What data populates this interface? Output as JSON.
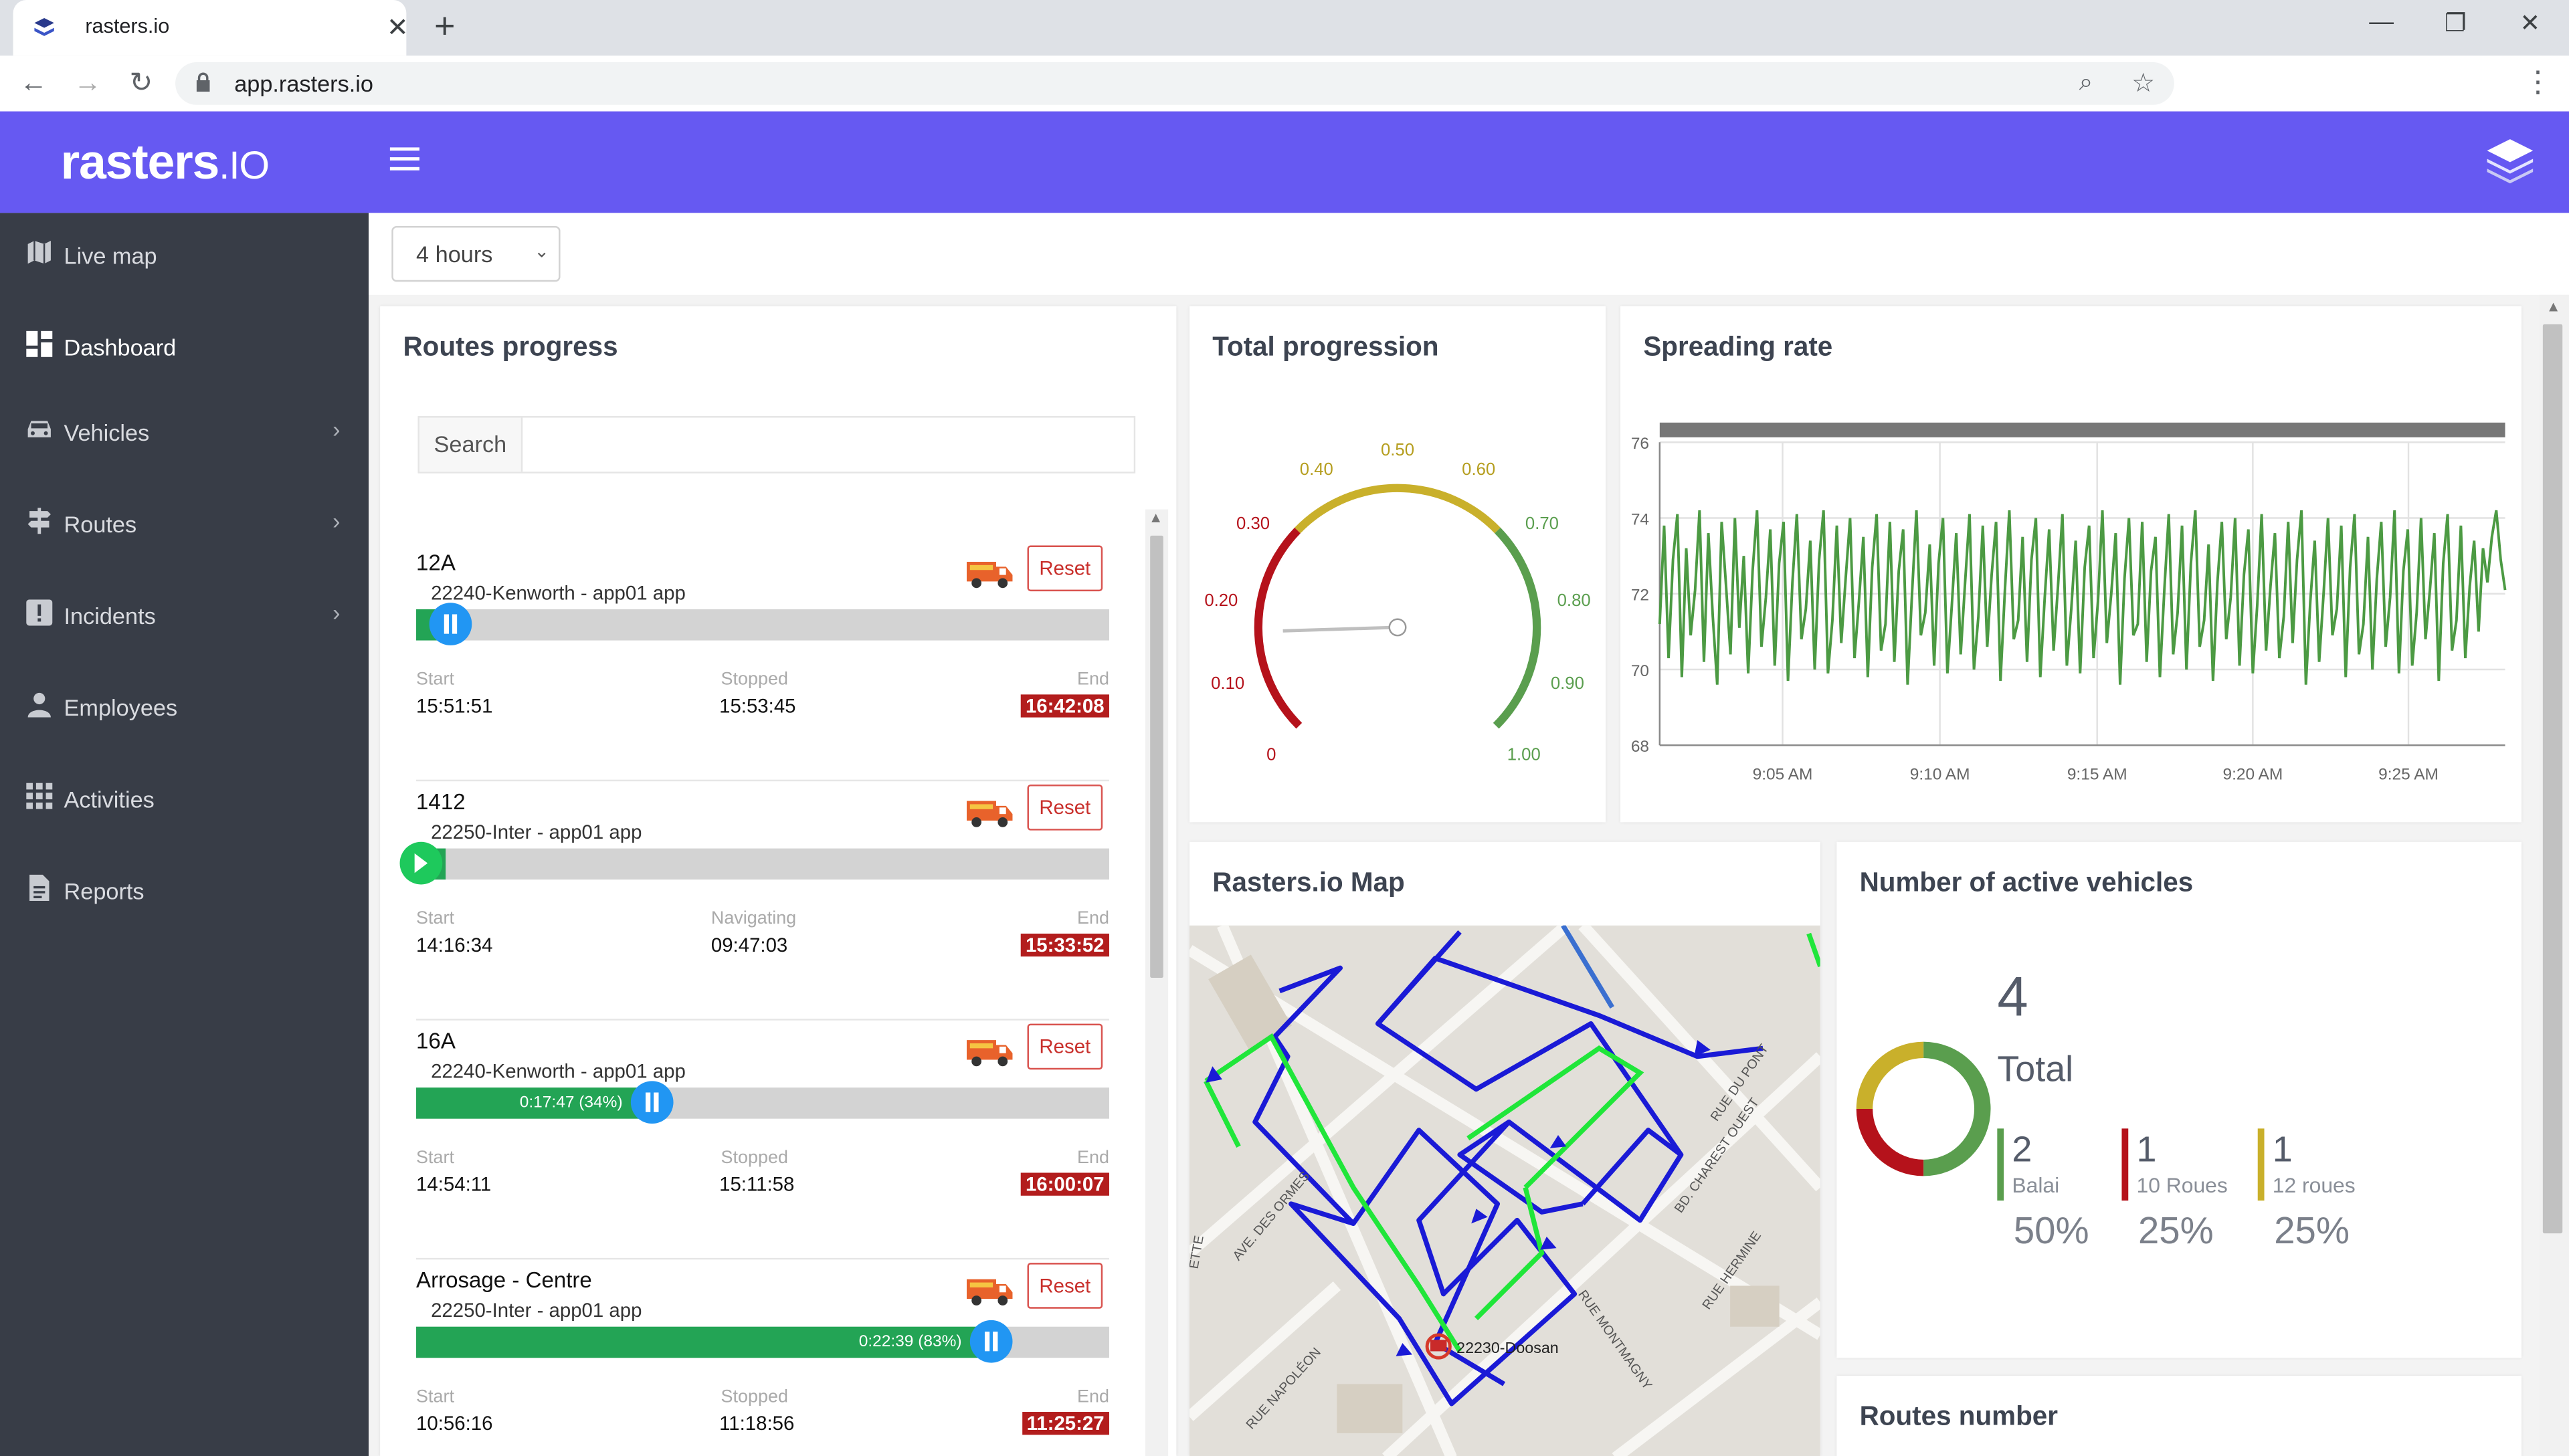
{
  "browser": {
    "tab_title": "rasters.io",
    "url": "app.rasters.io"
  },
  "app": {
    "logo_main": "rasters",
    "logo_suffix": ".IO"
  },
  "sidebar": {
    "items": [
      {
        "label": "Live map",
        "icon": "map-icon"
      },
      {
        "label": "Dashboard",
        "icon": "dashboard-icon"
      },
      {
        "label": "Vehicles",
        "icon": "car-icon"
      },
      {
        "label": "Routes",
        "icon": "signpost-icon"
      },
      {
        "label": "Incidents",
        "icon": "alert-icon"
      },
      {
        "label": "Employees",
        "icon": "person-icon"
      },
      {
        "label": "Activities",
        "icon": "grid-icon"
      },
      {
        "label": "Reports",
        "icon": "document-icon"
      }
    ]
  },
  "toolbar": {
    "time_range": "4 hours"
  },
  "routes_progress": {
    "title": "Routes progress",
    "search_label": "Search",
    "routes": [
      {
        "name": "12A",
        "sub": "22240-Kenworth - app01 app",
        "reset": "Reset",
        "progress_label": "",
        "progress": 0.05,
        "state": "paused",
        "start_label": "Start",
        "start": "15:51:51",
        "mid_label": "Stopped",
        "mid": "15:53:45",
        "end_label": "End",
        "end": "16:42:08"
      },
      {
        "name": "1412",
        "sub": "22250-Inter - app01 app",
        "reset": "Reset",
        "progress_label": "",
        "progress": 0.0,
        "state": "stopped",
        "start_label": "Start",
        "start": "14:16:34",
        "mid_label": "Navigating",
        "mid": "09:47:03",
        "end_label": "End",
        "end": "15:33:52"
      },
      {
        "name": "16A",
        "sub": "22240-Kenworth - app01 app",
        "reset": "Reset",
        "progress_label": "0:17:47 (34%)",
        "progress": 0.34,
        "state": "paused",
        "start_label": "Start",
        "start": "14:54:11",
        "mid_label": "Stopped",
        "mid": "15:11:58",
        "end_label": "End",
        "end": "16:00:07"
      },
      {
        "name": "Arrosage - Centre",
        "sub": "22250-Inter - app01 app",
        "reset": "Reset",
        "progress_label": "0:22:39 (83%)",
        "progress": 0.83,
        "state": "paused",
        "start_label": "Start",
        "start": "10:56:16",
        "mid_label": "Stopped",
        "mid": "11:18:56",
        "end_label": "End",
        "end": "11:25:27"
      }
    ]
  },
  "total_progression": {
    "title": "Total progression",
    "ticks": [
      "0",
      "0.10",
      "0.20",
      "0.30",
      "0.40",
      "0.50",
      "0.60",
      "0.70",
      "0.80",
      "0.90",
      "1.00"
    ],
    "value": 0.16,
    "colors": {
      "low": "#b5121b",
      "mid": "#c9b02b",
      "high": "#5a9e4e"
    }
  },
  "chart_data": {
    "type": "line",
    "title": "Spreading rate",
    "xlabel": "",
    "ylabel": "",
    "x_ticks": [
      "9:05 AM",
      "9:10 AM",
      "9:15 AM",
      "9:20 AM",
      "9:25 AM"
    ],
    "y_ticks": [
      68,
      70,
      72,
      74,
      76
    ],
    "ylim": [
      68,
      76
    ],
    "xlim": [
      "9:01 AM",
      "9:28 AM"
    ],
    "grid": true,
    "series": [
      {
        "color": "#4c9a43",
        "values": [
          71.2,
          73.8,
          70.3,
          72.9,
          74.1,
          69.8,
          73.2,
          70.9,
          72.1,
          74.2,
          70.2,
          73.6,
          71.4,
          69.6,
          73.9,
          72.2,
          70.4,
          74.0,
          71.1,
          73.0,
          69.9,
          72.6,
          74.2,
          70.6,
          71.9,
          73.7,
          70.1,
          72.8,
          73.9,
          69.7,
          72.3,
          74.1,
          70.8,
          71.6,
          73.4,
          70.0,
          72.9,
          74.2,
          69.9,
          71.3,
          73.8,
          70.7,
          72.4,
          74.0,
          70.3,
          71.8,
          73.5,
          69.8,
          72.7,
          74.1,
          70.5,
          71.2,
          73.9,
          70.2,
          72.6,
          73.7,
          69.6,
          72.0,
          74.2,
          70.9,
          71.5,
          73.3,
          70.1,
          72.8,
          74.0,
          69.9,
          71.7,
          73.6,
          70.4,
          72.3,
          74.1,
          70.0,
          71.4,
          73.8,
          70.6,
          72.5,
          73.9,
          69.7,
          72.1,
          74.2,
          70.8,
          71.3,
          73.5,
          70.2,
          72.9,
          74.0,
          69.8,
          71.9,
          73.7,
          70.5,
          72.2,
          74.1,
          70.1,
          71.6,
          73.4,
          69.9,
          72.7,
          73.8,
          70.3,
          71.8,
          74.2,
          70.7,
          72.0,
          73.6,
          69.6,
          72.4,
          74.0,
          70.9,
          71.2,
          73.9,
          70.2,
          72.6,
          73.5,
          69.8,
          72.1,
          74.1,
          70.4,
          71.5,
          73.8,
          70.0,
          72.8,
          74.2,
          70.6,
          71.3,
          73.3,
          69.7,
          72.3,
          73.9,
          70.8,
          71.9,
          74.0,
          70.1,
          72.5,
          73.7,
          69.9,
          71.7,
          74.1,
          70.5,
          72.2,
          73.6,
          70.3,
          71.4,
          73.9,
          70.7,
          72.9,
          74.2,
          69.6,
          71.8,
          73.4,
          70.2,
          72.0,
          74.0,
          70.9,
          71.6,
          73.8,
          69.8,
          72.7,
          74.1,
          70.4,
          71.2,
          73.5,
          70.0,
          72.4,
          73.9,
          70.6,
          71.9,
          74.2,
          69.9,
          72.6,
          73.7,
          70.1,
          71.5,
          74.0,
          70.8,
          72.1,
          73.6,
          69.7,
          72.8,
          74.1,
          70.5,
          71.3,
          73.8,
          70.3,
          72.2,
          73.4,
          71.0,
          73.2,
          72.3,
          73.5,
          74.2,
          72.9,
          72.1
        ]
      }
    ]
  },
  "map": {
    "title": "Rasters.io Map",
    "vehicle_label": "22230-Doosan",
    "streets": [
      "AVE. DES ORMES",
      "RUE NAPOLÉON",
      "RUE MONTMAGNY",
      "RUE HERMINE",
      "BD. CHAREST OUEST",
      "RUE DU PONT",
      "ETTE"
    ]
  },
  "active_vehicles": {
    "title": "Number of active vehicles",
    "total": "4",
    "total_label": "Total",
    "segments": [
      {
        "count": "2",
        "label": "Balai",
        "pct": "50%",
        "color": "#5a9e4e",
        "share": 0.5
      },
      {
        "count": "1",
        "label": "10 Roues",
        "pct": "25%",
        "color": "#b5121b",
        "share": 0.25
      },
      {
        "count": "1",
        "label": "12 roues",
        "pct": "25%",
        "color": "#c9b02b",
        "share": 0.25
      }
    ]
  },
  "routes_number": {
    "title": "Routes number"
  }
}
